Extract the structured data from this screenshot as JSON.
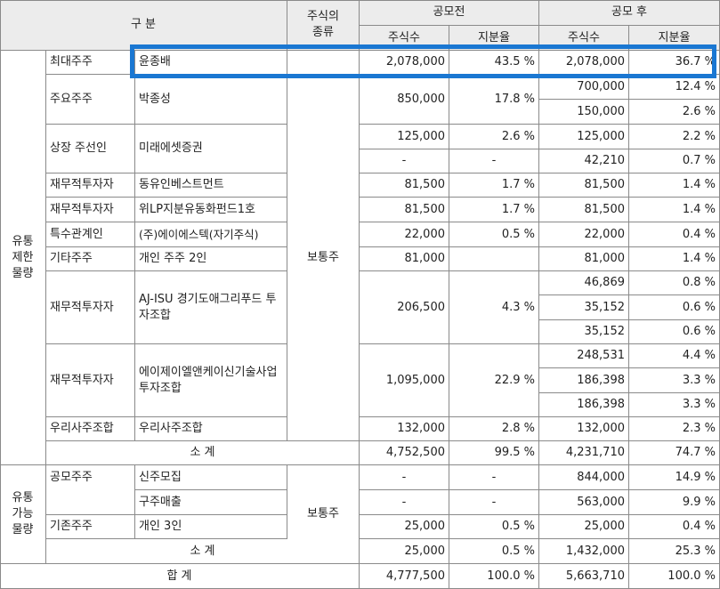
{
  "header": {
    "category": "구 분",
    "share_type": "주식의\n종류",
    "before": "공모전",
    "after": "공모 후",
    "shares": "주식수",
    "ratio": "지분율"
  },
  "groups": {
    "restricted": "유통\n제한\n물량",
    "tradable": "유통\n가능\n물량"
  },
  "share_type_value": "보통주",
  "rows": {
    "r1": {
      "type": "최대주주",
      "name": "윤종배",
      "b_shares": "2,078,000",
      "b_ratio": "43.5 %",
      "a_shares": "2,078,000",
      "a_ratio": "36.7 %"
    },
    "r2": {
      "type": "주요주주",
      "name": "박종성",
      "b_shares": "850,000",
      "b_ratio": "17.8 %",
      "a": [
        [
          "700,000",
          "12.4 %"
        ],
        [
          "150,000",
          "2.6 %"
        ]
      ]
    },
    "r3": {
      "type": "상장 주선인",
      "name": "미래에셋증권",
      "b": [
        [
          "125,000",
          "2.6 %"
        ],
        [
          "-",
          "-"
        ]
      ],
      "a": [
        [
          "125,000",
          "2.2 %"
        ],
        [
          "42,210",
          "0.7 %"
        ]
      ]
    },
    "r4": {
      "type": "재무적투자자",
      "name": "동유인베스트먼트",
      "b_shares": "81,500",
      "b_ratio": "1.7 %",
      "a_shares": "81,500",
      "a_ratio": "1.4 %"
    },
    "r5": {
      "type": "재무적투자자",
      "name": "위LP지분유동화펀드1호",
      "b_shares": "81,500",
      "b_ratio": "1.7 %",
      "a_shares": "81,500",
      "a_ratio": "1.4 %"
    },
    "r6": {
      "type": "특수관계인",
      "name": "(주)에이에스텍(자기주식)",
      "b_shares": "22,000",
      "b_ratio": "0.5 %",
      "a_shares": "22,000",
      "a_ratio": "0.4 %"
    },
    "r7": {
      "type": "기타주주",
      "name": "개인 주주 2인",
      "b_shares": "81,000",
      "a_shares": "81,000",
      "a_ratio": "1.4 %"
    },
    "r8": {
      "type": "재무적투자자",
      "name": "AJ-ISU 경기도애그리푸드 투자조합",
      "b_shares": "206,500",
      "b_ratio": "4.3 %",
      "a": [
        [
          "46,869",
          "0.8 %"
        ],
        [
          "35,152",
          "0.6 %"
        ],
        [
          "35,152",
          "0.6 %"
        ]
      ]
    },
    "r9": {
      "type": "재무적투자자",
      "name": "에이제이엘앤케이신기술사업투자조합",
      "b_shares": "1,095,000",
      "b_ratio": "22.9 %",
      "a": [
        [
          "248,531",
          "4.4 %"
        ],
        [
          "186,398",
          "3.3 %"
        ],
        [
          "186,398",
          "3.3 %"
        ]
      ]
    },
    "r10": {
      "type": "우리사주조합",
      "name": "우리사주조합",
      "b_shares": "132,000",
      "b_ratio": "2.8 %",
      "a_shares": "132,000",
      "a_ratio": "2.3 %"
    }
  },
  "subtotal1": {
    "label": "소 계",
    "b_shares": "4,752,500",
    "b_ratio": "99.5 %",
    "a_shares": "4,231,710",
    "a_ratio": "74.7 %"
  },
  "tradable": {
    "t1": {
      "type": "공모주주",
      "name": "신주모집",
      "b_shares": "-",
      "b_ratio": "-",
      "a_shares": "844,000",
      "a_ratio": "14.9 %"
    },
    "t2": {
      "name": "구주매출",
      "b_shares": "-",
      "b_ratio": "-",
      "a_shares": "563,000",
      "a_ratio": "9.9 %"
    },
    "t3": {
      "type": "기존주주",
      "name": "개인 3인",
      "b_shares": "25,000",
      "b_ratio": "0.5 %",
      "a_shares": "25,000",
      "a_ratio": "0.4 %"
    }
  },
  "subtotal2": {
    "label": "소 계",
    "b_shares": "25,000",
    "b_ratio": "0.5 %",
    "a_shares": "1,432,000",
    "a_ratio": "25.3 %"
  },
  "total": {
    "label": "합 계",
    "b_shares": "4,777,500",
    "b_ratio": "100.0 %",
    "a_shares": "5,663,710",
    "a_ratio": "100.0 %"
  }
}
